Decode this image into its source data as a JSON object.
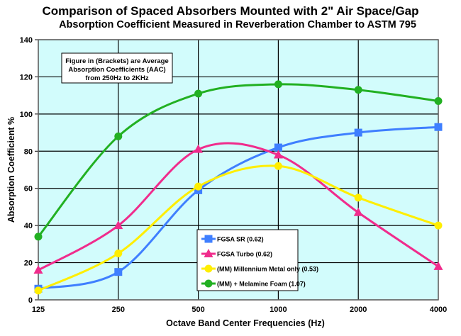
{
  "chart_data": {
    "type": "line",
    "title": "Comparison of Spaced Absorbers Mounted with 2\" Air Space/Gap",
    "subtitle": "Absorption Coefficient Measured in Reverberation Chamber to ASTM 795",
    "xlabel": "Octave Band Center Frequencies (Hz)",
    "ylabel": "Absorption Coefficient %",
    "categories": [
      "125",
      "250",
      "500",
      "1000",
      "2000",
      "4000"
    ],
    "yticks": [
      "0",
      "20",
      "40",
      "60",
      "80",
      "100",
      "120",
      "140"
    ],
    "ylim": [
      0,
      140
    ],
    "grid": true,
    "annotation": [
      "Figure in (Brackets) are Average",
      "Absorption Coefficients (AAC)",
      "from 250Hz to 2KHz"
    ],
    "legend_position": "bottom-center",
    "plot_background": "#d2fcfc",
    "series": [
      {
        "name": "FGSA SR (0.62)",
        "color": "#3f7fff",
        "marker": "square",
        "values": [
          6,
          15,
          59,
          82,
          90,
          93
        ]
      },
      {
        "name": "FGSA Turbo (0.62)",
        "color": "#f02c8c",
        "marker": "triangle",
        "values": [
          16,
          40,
          81,
          78,
          47,
          18
        ]
      },
      {
        "name": "(MM) Millennium Metal only (0.53)",
        "color": "#ffee00",
        "marker": "circle",
        "values": [
          5,
          25,
          61,
          72,
          55,
          40
        ]
      },
      {
        "name": "(MM) + Melamine Foam (1.07)",
        "color": "#22b022",
        "marker": "circle",
        "values": [
          34,
          88,
          111,
          116,
          113,
          107
        ]
      }
    ]
  }
}
